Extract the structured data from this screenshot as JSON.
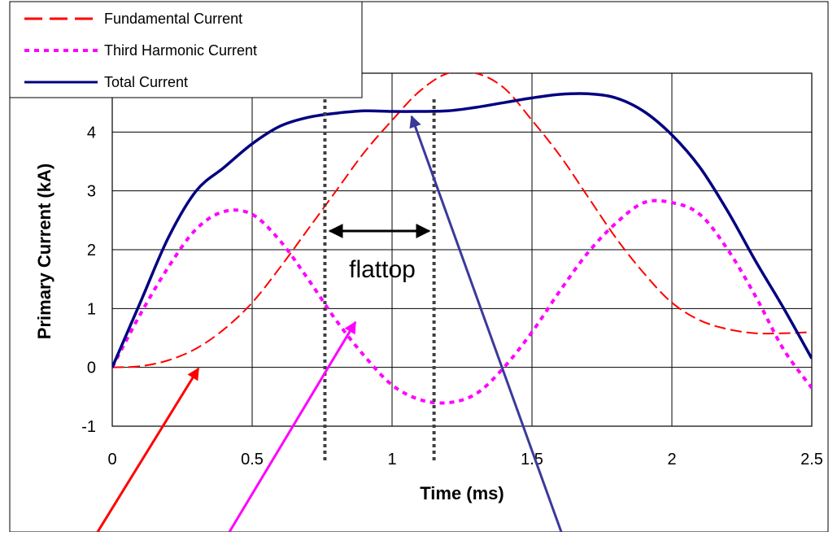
{
  "chart_data": {
    "type": "line",
    "title": "",
    "xlabel": "Time (ms)",
    "ylabel": "Primary Current (kA)",
    "xlim": [
      0,
      2.5
    ],
    "ylim": [
      -1,
      5
    ],
    "xticks": [
      0,
      0.5,
      1,
      1.5,
      2,
      2.5
    ],
    "xtick_labels": [
      "0",
      "0.5",
      "1",
      "1.5",
      "2",
      "2.5"
    ],
    "yticks": [
      -1,
      0,
      1,
      2,
      3,
      4
    ],
    "ytick_labels": [
      "-1",
      "0",
      "1",
      "2",
      "3",
      "4"
    ],
    "grid": true,
    "legend": "top-left",
    "series": [
      {
        "name": "Fundamental Current",
        "color": "#ff0000",
        "style": "dashed",
        "x": [
          0,
          0.1,
          0.2,
          0.3,
          0.4,
          0.5,
          0.6,
          0.7,
          0.8,
          0.9,
          1.0,
          1.1,
          1.2,
          1.3,
          1.4,
          1.5,
          1.6,
          1.7,
          1.8,
          1.9,
          2.0,
          2.1,
          2.2,
          2.3,
          2.4,
          2.5
        ],
        "y": [
          0,
          0.02,
          0.12,
          0.32,
          0.65,
          1.1,
          1.7,
          2.35,
          3.0,
          3.65,
          4.2,
          4.7,
          5.0,
          5.0,
          4.75,
          4.2,
          3.6,
          2.9,
          2.2,
          1.6,
          1.1,
          0.8,
          0.65,
          0.58,
          0.58,
          0.6
        ]
      },
      {
        "name": "Third Harmonic Current",
        "color": "#ff00ff",
        "style": "dotted",
        "x": [
          0,
          0.1,
          0.2,
          0.3,
          0.4,
          0.5,
          0.6,
          0.7,
          0.8,
          0.9,
          1.0,
          1.1,
          1.2,
          1.3,
          1.4,
          1.5,
          1.6,
          1.7,
          1.8,
          1.9,
          2.0,
          2.1,
          2.2,
          2.3,
          2.4,
          2.5
        ],
        "y": [
          0,
          0.9,
          1.7,
          2.35,
          2.65,
          2.6,
          2.15,
          1.5,
          0.8,
          0.2,
          -0.3,
          -0.55,
          -0.6,
          -0.45,
          0,
          0.6,
          1.3,
          1.95,
          2.45,
          2.8,
          2.8,
          2.6,
          2.0,
          1.2,
          0.3,
          -0.35
        ]
      },
      {
        "name": "Total Current",
        "color": "#000080",
        "style": "solid",
        "x": [
          0,
          0.1,
          0.2,
          0.3,
          0.4,
          0.5,
          0.6,
          0.7,
          0.8,
          0.9,
          1.0,
          1.1,
          1.2,
          1.3,
          1.4,
          1.5,
          1.6,
          1.7,
          1.8,
          1.9,
          2.0,
          2.1,
          2.2,
          2.3,
          2.4,
          2.5
        ],
        "y": [
          0,
          1.1,
          2.2,
          3.0,
          3.4,
          3.8,
          4.1,
          4.25,
          4.32,
          4.36,
          4.35,
          4.35,
          4.36,
          4.42,
          4.5,
          4.58,
          4.64,
          4.65,
          4.58,
          4.35,
          3.95,
          3.4,
          2.65,
          1.8,
          1.0,
          0.15
        ]
      }
    ],
    "annotations": {
      "flattop_label": "flattop",
      "flattop_start_x": 0.76,
      "flattop_end_x": 1.15
    }
  }
}
